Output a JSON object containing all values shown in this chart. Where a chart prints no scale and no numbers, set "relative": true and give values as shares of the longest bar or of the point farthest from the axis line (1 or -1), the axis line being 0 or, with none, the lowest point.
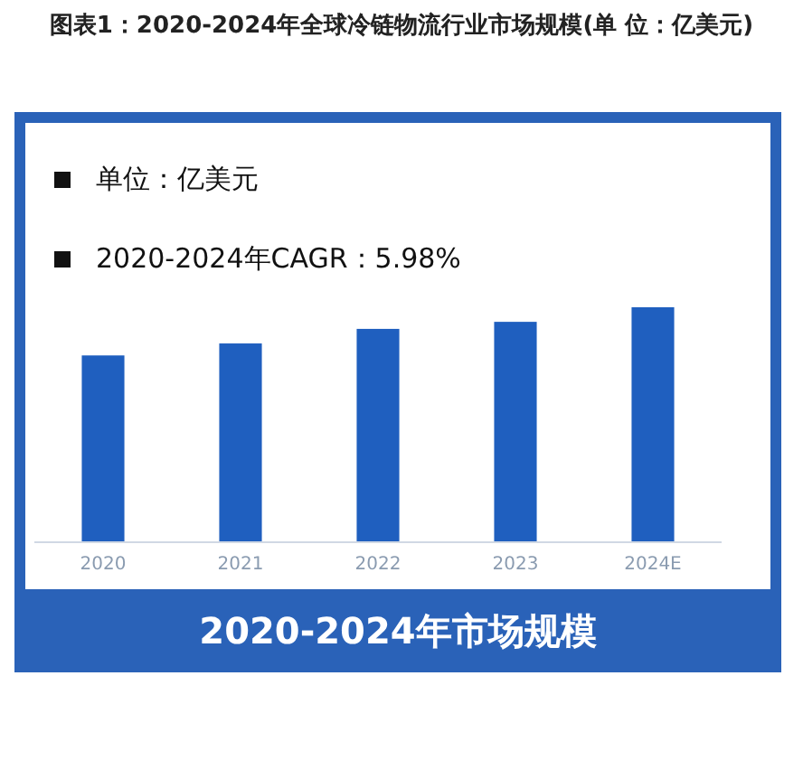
{
  "chart_data": {
    "type": "bar",
    "title": "图表1：2020-2024年全球冷链物流行业市场规模(单 位：亿美元)",
    "xlabel": "2020-2024年市场规模",
    "annotations": [
      "单位：亿美元",
      "2020-2024年CAGR：5.98%"
    ],
    "categories": [
      "2020",
      "2021",
      "2022",
      "2023",
      "2024E"
    ],
    "values": [
      0.795,
      0.846,
      0.908,
      0.938,
      1
    ],
    "color": "#1f5fbf",
    "relative": true
  }
}
